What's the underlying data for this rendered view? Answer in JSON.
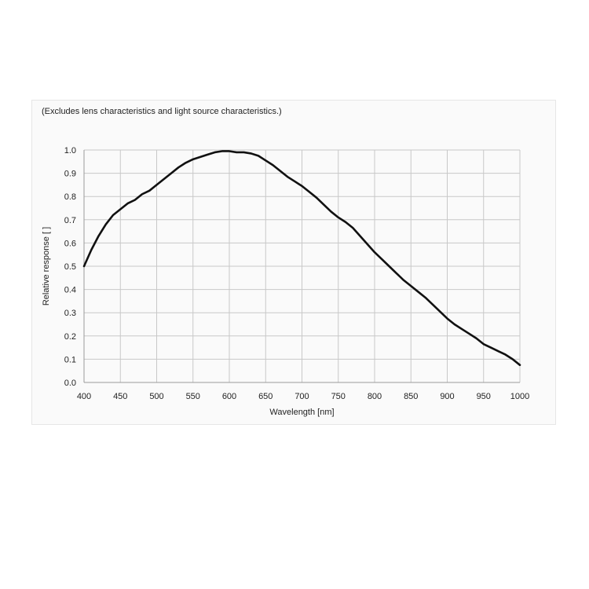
{
  "note": "(Excludes lens characteristics and light source characteristics.)",
  "chart_data": {
    "type": "line",
    "title": "",
    "xlabel": "Wavelength [nm]",
    "ylabel": "Relative response [ ]",
    "xlim": [
      400,
      1000
    ],
    "ylim": [
      0.0,
      1.0
    ],
    "x_ticks": [
      "400",
      "450",
      "500",
      "550",
      "600",
      "650",
      "700",
      "750",
      "800",
      "850",
      "900",
      "950",
      "1000"
    ],
    "y_ticks": [
      "0.0",
      "0.1",
      "0.2",
      "0.3",
      "0.4",
      "0.5",
      "0.6",
      "0.7",
      "0.8",
      "0.9",
      "1.0"
    ],
    "grid": true,
    "line_color": "#111111",
    "series": [
      {
        "x": [
          400,
          410,
          420,
          430,
          440,
          450,
          460,
          470,
          480,
          490,
          500,
          510,
          520,
          530,
          540,
          550,
          560,
          570,
          580,
          590,
          600,
          610,
          620,
          630,
          640,
          650,
          660,
          670,
          680,
          690,
          700,
          710,
          720,
          730,
          740,
          750,
          760,
          770,
          780,
          790,
          800,
          810,
          820,
          830,
          840,
          850,
          860,
          870,
          880,
          890,
          900,
          910,
          920,
          930,
          940,
          950,
          960,
          970,
          980,
          990,
          1000
        ],
        "values": [
          0.5,
          0.57,
          0.63,
          0.68,
          0.72,
          0.745,
          0.77,
          0.785,
          0.81,
          0.825,
          0.85,
          0.875,
          0.9,
          0.925,
          0.945,
          0.96,
          0.97,
          0.98,
          0.99,
          0.995,
          0.995,
          0.99,
          0.99,
          0.985,
          0.975,
          0.955,
          0.935,
          0.91,
          0.885,
          0.865,
          0.845,
          0.82,
          0.795,
          0.765,
          0.735,
          0.71,
          0.69,
          0.665,
          0.63,
          0.595,
          0.56,
          0.53,
          0.5,
          0.47,
          0.44,
          0.415,
          0.39,
          0.365,
          0.335,
          0.305,
          0.275,
          0.25,
          0.23,
          0.21,
          0.19,
          0.165,
          0.15,
          0.135,
          0.12,
          0.1,
          0.075
        ]
      }
    ]
  }
}
